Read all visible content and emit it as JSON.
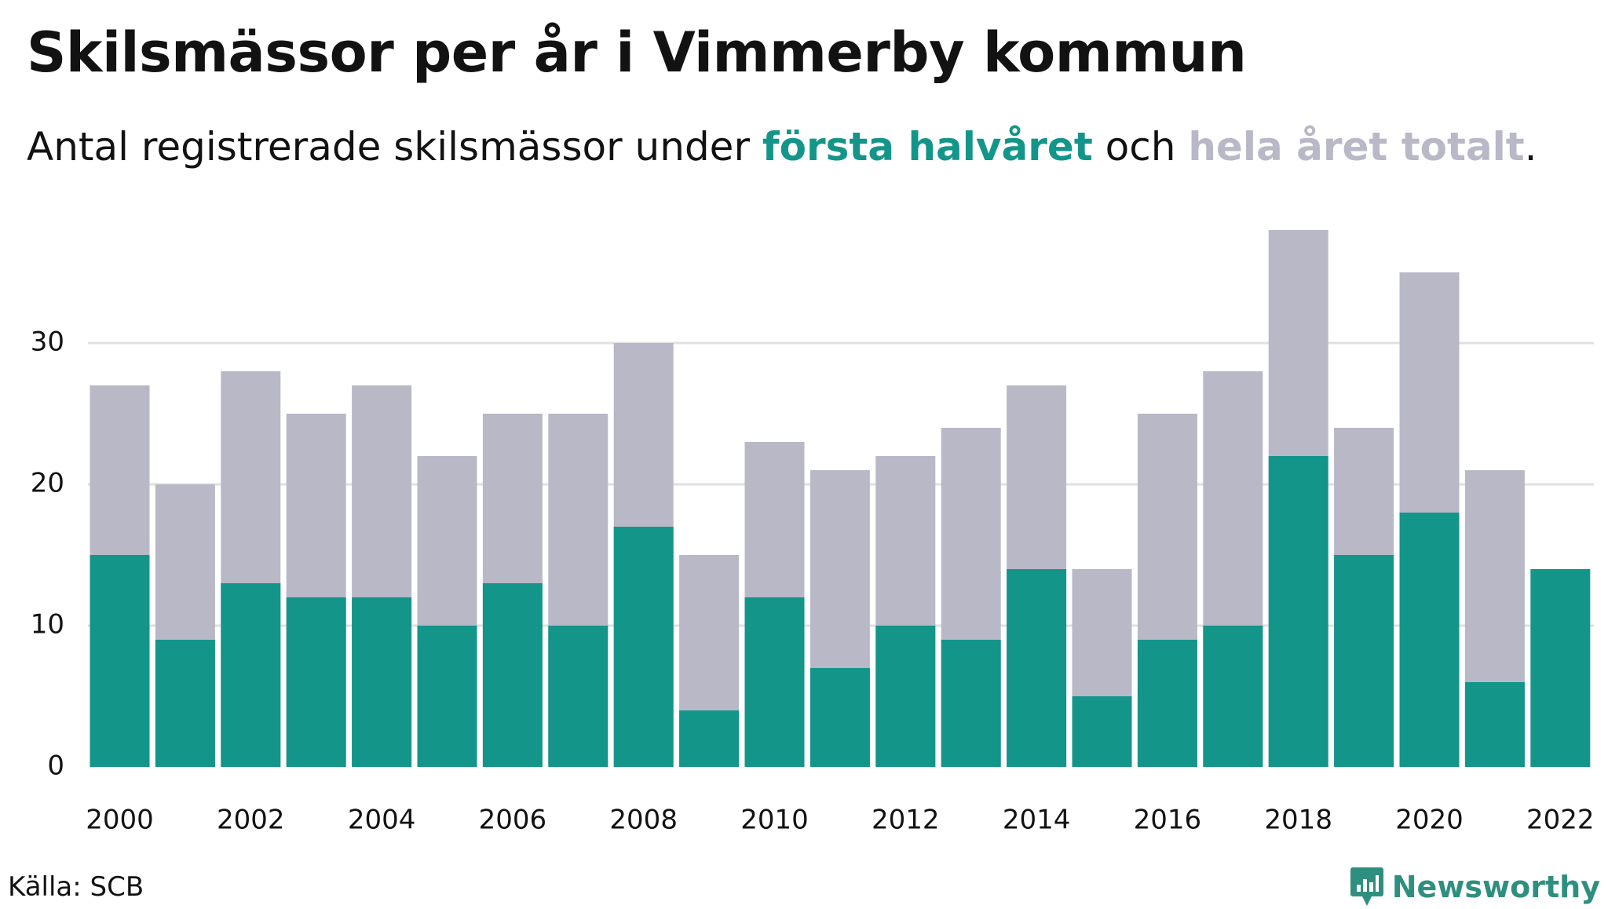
{
  "header": {
    "title": "Skilsmässor per år i Vimmerby kommun",
    "subtitle_prefix": "Antal registrerade skilsmässor under ",
    "subtitle_first": "första halvåret",
    "subtitle_mid": " och ",
    "subtitle_total": "hela året totalt",
    "subtitle_suffix": "."
  },
  "footer": {
    "source": "Källa: SCB",
    "brand": "Newsworthy"
  },
  "colors": {
    "first_half": "#14958a",
    "full_year": "#b9b8c7",
    "grid": "#e0e0e0",
    "brand": "#2f8f7f"
  },
  "chart_data": {
    "type": "bar",
    "stacking": "overlay",
    "categories": [
      "2000",
      "2001",
      "2002",
      "2003",
      "2004",
      "2005",
      "2006",
      "2007",
      "2008",
      "2009",
      "2010",
      "2011",
      "2012",
      "2013",
      "2014",
      "2015",
      "2016",
      "2017",
      "2018",
      "2019",
      "2020",
      "2021",
      "2022"
    ],
    "series": [
      {
        "name": "hela året totalt",
        "color": "#b9b8c7",
        "values": [
          27,
          20,
          28,
          25,
          27,
          22,
          25,
          25,
          30,
          15,
          23,
          21,
          22,
          24,
          27,
          14,
          25,
          28,
          38,
          24,
          35,
          21,
          null
        ]
      },
      {
        "name": "första halvåret",
        "color": "#14958a",
        "values": [
          15,
          9,
          13,
          12,
          12,
          10,
          13,
          10,
          17,
          4,
          12,
          7,
          10,
          9,
          14,
          5,
          9,
          10,
          22,
          15,
          18,
          6,
          14
        ]
      }
    ],
    "x_tick_labels": [
      "2000",
      "2002",
      "2004",
      "2006",
      "2008",
      "2010",
      "2012",
      "2014",
      "2016",
      "2018",
      "2020",
      "2022"
    ],
    "y_ticks": [
      0,
      10,
      20,
      30
    ],
    "ylim": [
      0,
      40
    ],
    "grid": true,
    "legend": "in subtitle"
  }
}
